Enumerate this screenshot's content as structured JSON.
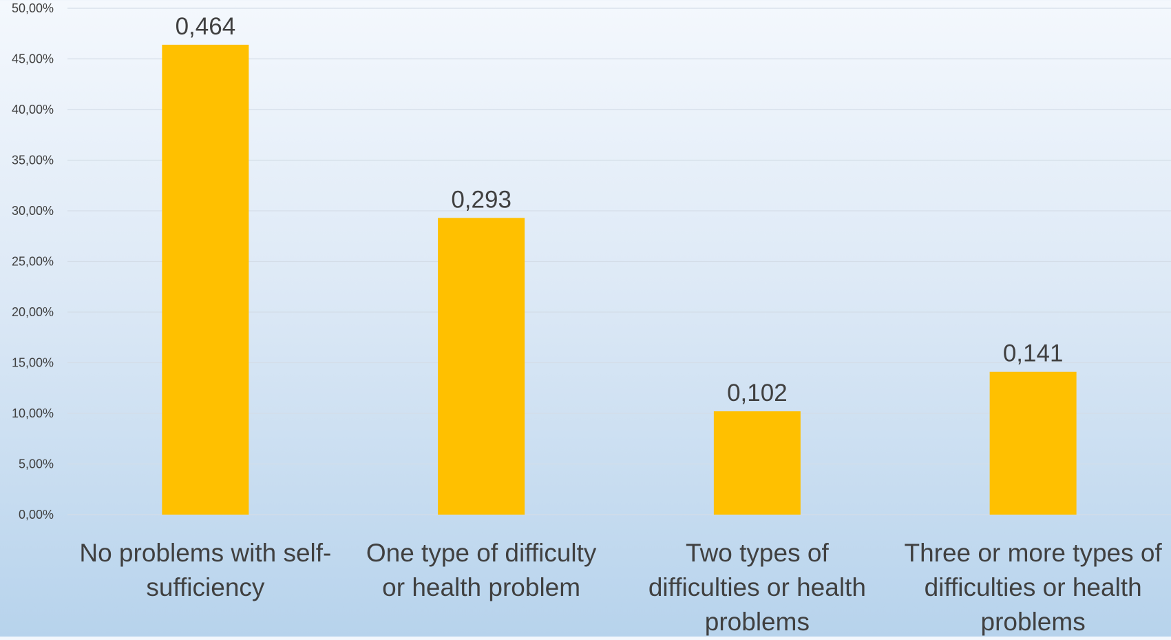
{
  "chart_data": {
    "type": "bar",
    "categories": [
      [
        "No problems with self-",
        "sufficiency"
      ],
      [
        "One type of difficulty",
        "or health problem"
      ],
      [
        "Two types of",
        "difficulties or health",
        "problems"
      ],
      [
        "Three or more types of",
        "difficulties or health",
        "problems"
      ]
    ],
    "values": [
      0.464,
      0.293,
      0.102,
      0.141
    ],
    "data_labels": [
      "0,464",
      "0,293",
      "0,102",
      "0,141"
    ],
    "y_ticks": [
      "0,00%",
      "5,00%",
      "10,00%",
      "15,00%",
      "20,00%",
      "25,00%",
      "30,00%",
      "35,00%",
      "40,00%",
      "45,00%",
      "50,00%"
    ],
    "ylim": [
      0,
      0.5
    ],
    "grid": true,
    "title": "",
    "xlabel": "",
    "ylabel": "",
    "colors": {
      "bar": "#FFC000",
      "grid": "#d4dde8",
      "axis_text": "#404040",
      "label_text": "#404040"
    }
  }
}
